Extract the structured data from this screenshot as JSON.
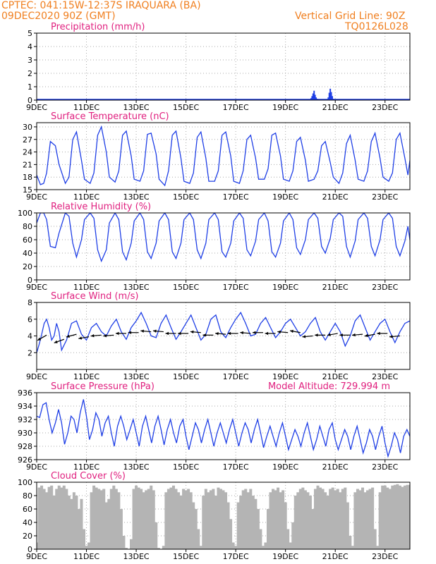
{
  "header": {
    "line1": "CPTEC:   041:15W-12:37S   IRAQUARA (BA)",
    "line2": "09DEC2020 90Z (GMT)",
    "grid_note": "Vertical Grid Line: 90Z",
    "code": "TQ0126L028"
  },
  "colors": {
    "header": "#f07f1f",
    "title": "#e0207f",
    "line": "#1f3fe6",
    "cloud": "#b4b4b4",
    "axis": "#000000"
  },
  "x_axis": {
    "domain_days": [
      9,
      24
    ],
    "ticks": [
      {
        "day": 9,
        "label": "9DEC"
      },
      {
        "day": 11,
        "label": "11DEC"
      },
      {
        "day": 13,
        "label": "13DEC"
      },
      {
        "day": 15,
        "label": "15DEC"
      },
      {
        "day": 17,
        "label": "17DEC"
      },
      {
        "day": 19,
        "label": "19DEC"
      },
      {
        "day": 21,
        "label": "21DEC"
      },
      {
        "day": 23,
        "label": "23DEC"
      }
    ]
  },
  "chart_data": [
    {
      "id": "precip",
      "type": "bar",
      "title": "Precipitation (mm/h)",
      "ylim": [
        0,
        5
      ],
      "yticks": [
        0,
        1,
        2,
        3,
        4,
        5
      ],
      "x": [
        20.03,
        20.07,
        20.11,
        20.15,
        20.19,
        20.23,
        20.27,
        20.31,
        20.72,
        20.76,
        20.8,
        20.84,
        20.88,
        20.92
      ],
      "values": [
        0.15,
        0.3,
        0.5,
        0.7,
        0.4,
        0.2,
        0.1,
        0.05,
        0.2,
        0.55,
        0.85,
        0.6,
        0.3,
        0.1
      ]
    },
    {
      "id": "temp",
      "type": "line",
      "title": "Surface Temperature (nC)",
      "ylim": [
        15,
        31
      ],
      "yticks": [
        15,
        18,
        21,
        24,
        27,
        30
      ],
      "x": [
        9.0,
        9.15,
        9.28,
        9.4,
        9.55,
        9.75,
        9.9,
        10.15,
        10.3,
        10.45,
        10.6,
        10.8,
        10.92,
        11.15,
        11.3,
        11.45,
        11.6,
        11.8,
        11.92,
        12.15,
        12.3,
        12.45,
        12.6,
        12.8,
        12.92,
        13.15,
        13.3,
        13.45,
        13.6,
        13.8,
        13.92,
        14.15,
        14.3,
        14.45,
        14.6,
        14.8,
        14.92,
        15.15,
        15.3,
        15.45,
        15.6,
        15.8,
        15.92,
        16.15,
        16.3,
        16.45,
        16.6,
        16.8,
        16.92,
        17.15,
        17.3,
        17.45,
        17.6,
        17.8,
        17.92,
        18.15,
        18.3,
        18.45,
        18.6,
        18.8,
        18.92,
        19.15,
        19.3,
        19.45,
        19.6,
        19.8,
        19.92,
        20.15,
        20.3,
        20.45,
        20.6,
        20.8,
        20.92,
        21.15,
        21.3,
        21.45,
        21.6,
        21.8,
        21.92,
        22.15,
        22.3,
        22.45,
        22.6,
        22.8,
        22.92,
        23.15,
        23.3,
        23.45,
        23.6,
        23.8,
        23.92,
        24.0
      ],
      "values": [
        18.5,
        16.2,
        16.5,
        19.0,
        26.5,
        25.5,
        21.0,
        16.5,
        18.0,
        27.0,
        28.8,
        22.0,
        17.5,
        16.5,
        19.0,
        28.0,
        30.0,
        24.0,
        18.0,
        16.8,
        19.5,
        28.0,
        29.0,
        23.0,
        17.5,
        17.0,
        19.5,
        28.2,
        28.5,
        23.5,
        17.5,
        16.0,
        19.5,
        28.0,
        29.0,
        22.5,
        17.0,
        16.5,
        19.0,
        27.5,
        28.8,
        22.5,
        17.0,
        17.0,
        19.5,
        28.0,
        28.8,
        23.0,
        17.0,
        16.5,
        19.5,
        27.0,
        28.0,
        22.5,
        17.5,
        17.5,
        20.0,
        28.0,
        28.5,
        23.0,
        17.5,
        17.0,
        19.5,
        26.5,
        27.5,
        22.0,
        17.0,
        17.5,
        19.5,
        25.5,
        26.5,
        21.5,
        18.0,
        16.5,
        19.0,
        26.0,
        28.0,
        22.0,
        17.5,
        17.0,
        19.5,
        26.5,
        28.5,
        22.5,
        18.0,
        17.0,
        19.0,
        27.0,
        28.5,
        22.5,
        18.5,
        22.0
      ]
    },
    {
      "id": "rh",
      "type": "line",
      "title": "Relative Humidity (%)",
      "ylim": [
        0,
        100
      ],
      "yticks": [
        0,
        20,
        40,
        60,
        80,
        100
      ],
      "x": [
        9.0,
        9.15,
        9.28,
        9.4,
        9.55,
        9.75,
        9.9,
        10.15,
        10.3,
        10.45,
        10.6,
        10.8,
        10.92,
        11.15,
        11.3,
        11.45,
        11.6,
        11.8,
        11.92,
        12.15,
        12.3,
        12.45,
        12.6,
        12.8,
        12.92,
        13.15,
        13.3,
        13.45,
        13.6,
        13.8,
        13.92,
        14.15,
        14.3,
        14.45,
        14.6,
        14.8,
        14.92,
        15.15,
        15.3,
        15.45,
        15.6,
        15.8,
        15.92,
        16.15,
        16.3,
        16.45,
        16.6,
        16.8,
        16.92,
        17.15,
        17.3,
        17.45,
        17.6,
        17.8,
        17.92,
        18.15,
        18.3,
        18.45,
        18.6,
        18.8,
        18.92,
        19.15,
        19.3,
        19.45,
        19.6,
        19.8,
        19.92,
        20.15,
        20.3,
        20.45,
        20.6,
        20.8,
        20.92,
        21.15,
        21.3,
        21.45,
        21.6,
        21.8,
        21.92,
        22.15,
        22.3,
        22.45,
        22.6,
        22.8,
        22.92,
        23.15,
        23.3,
        23.45,
        23.6,
        23.8,
        23.92,
        24.0
      ],
      "values": [
        85,
        100,
        100,
        90,
        50,
        48,
        70,
        100,
        95,
        55,
        34,
        60,
        90,
        100,
        92,
        45,
        28,
        45,
        85,
        100,
        90,
        42,
        30,
        55,
        88,
        100,
        90,
        42,
        32,
        55,
        88,
        100,
        90,
        42,
        32,
        55,
        90,
        100,
        90,
        45,
        32,
        55,
        90,
        100,
        90,
        42,
        34,
        55,
        88,
        100,
        92,
        45,
        36,
        58,
        90,
        100,
        88,
        42,
        34,
        55,
        88,
        100,
        90,
        48,
        38,
        60,
        90,
        100,
        92,
        50,
        40,
        62,
        90,
        100,
        95,
        50,
        34,
        58,
        90,
        100,
        92,
        50,
        36,
        60,
        90,
        100,
        92,
        50,
        36,
        58,
        80,
        60
      ]
    },
    {
      "id": "wind",
      "type": "line",
      "title": "Surface Wind (m/s)",
      "ylim": [
        0,
        8
      ],
      "yticks": [
        2,
        4,
        6,
        8
      ],
      "x": [
        9.0,
        9.1,
        9.2,
        9.3,
        9.4,
        9.5,
        9.6,
        9.7,
        9.8,
        9.9,
        10.0,
        10.2,
        10.4,
        10.6,
        10.8,
        11.0,
        11.2,
        11.4,
        11.6,
        11.8,
        12.0,
        12.2,
        12.4,
        12.6,
        12.8,
        13.0,
        13.2,
        13.4,
        13.6,
        13.8,
        14.0,
        14.2,
        14.4,
        14.6,
        14.8,
        15.0,
        15.2,
        15.4,
        15.6,
        15.8,
        16.0,
        16.2,
        16.4,
        16.6,
        16.8,
        17.0,
        17.2,
        17.4,
        17.6,
        17.8,
        18.0,
        18.2,
        18.4,
        18.6,
        18.8,
        19.0,
        19.2,
        19.4,
        19.6,
        19.8,
        20.0,
        20.2,
        20.4,
        20.6,
        20.8,
        21.0,
        21.2,
        21.4,
        21.6,
        21.8,
        22.0,
        22.2,
        22.4,
        22.6,
        22.8,
        23.0,
        23.2,
        23.4,
        23.6,
        23.8,
        24.0
      ],
      "values": [
        2.0,
        3.0,
        4.2,
        5.5,
        6.0,
        5.0,
        3.5,
        4.0,
        5.5,
        4.5,
        2.3,
        3.5,
        5.5,
        5.8,
        4.2,
        3.5,
        5.0,
        5.5,
        4.5,
        4.0,
        5.2,
        6.0,
        4.5,
        3.6,
        5.0,
        5.8,
        6.8,
        5.5,
        4.0,
        3.8,
        5.5,
        6.5,
        5.0,
        3.6,
        4.5,
        5.5,
        6.5,
        5.0,
        3.5,
        4.2,
        6.0,
        6.5,
        4.5,
        3.8,
        5.0,
        6.0,
        6.8,
        5.5,
        4.0,
        4.2,
        5.5,
        6.2,
        5.0,
        3.8,
        4.5,
        5.5,
        6.0,
        5.0,
        4.0,
        4.5,
        5.5,
        6.2,
        4.5,
        3.5,
        4.5,
        5.5,
        4.5,
        2.8,
        4.0,
        5.8,
        6.5,
        5.0,
        3.5,
        4.5,
        5.5,
        6.0,
        4.5,
        3.2,
        4.5,
        5.5,
        5.8
      ],
      "arrows": {
        "x": [
          9.4,
          10.1,
          10.6,
          11.1,
          11.6,
          12.1,
          12.6,
          13.1,
          13.6,
          14.1,
          14.6,
          15.1,
          15.6,
          16.1,
          16.6,
          17.1,
          17.6,
          18.1,
          18.6,
          19.1,
          19.6,
          20.1,
          20.6,
          21.1,
          21.6,
          22.1,
          22.6,
          23.1,
          23.6
        ],
        "y": [
          4.1,
          3.6,
          4.2,
          3.9,
          4.1,
          4.1,
          4.3,
          4.4,
          4.5,
          4.5,
          4.3,
          4.3,
          4.4,
          4.1,
          4.2,
          4.3,
          4.3,
          4.4,
          4.3,
          4.4,
          4.4,
          4.0,
          4.1,
          4.3,
          4.1,
          4.2,
          4.2,
          4.3,
          4.0
        ],
        "dir_deg": [
          210,
          200,
          195,
          190,
          185,
          185,
          180,
          180,
          175,
          175,
          180,
          180,
          175,
          180,
          175,
          180,
          175,
          180,
          180,
          175,
          170,
          185,
          180,
          190,
          180,
          185,
          190,
          180,
          185
        ]
      }
    },
    {
      "id": "pressure",
      "type": "line",
      "title": "Surface Pressure (hPa)",
      "subtitle": "Model Altitude: 729.994 m",
      "ylim": [
        926,
        936
      ],
      "yticks": [
        926,
        928,
        930,
        932,
        934,
        936
      ],
      "x": [
        9.0,
        9.12,
        9.25,
        9.38,
        9.5,
        9.62,
        9.75,
        9.88,
        10.0,
        10.12,
        10.25,
        10.38,
        10.5,
        10.62,
        10.75,
        10.88,
        11.0,
        11.12,
        11.25,
        11.38,
        11.5,
        11.62,
        11.75,
        11.88,
        12.0,
        12.12,
        12.25,
        12.38,
        12.5,
        12.62,
        12.75,
        12.88,
        13.0,
        13.12,
        13.25,
        13.38,
        13.5,
        13.62,
        13.75,
        13.88,
        14.0,
        14.12,
        14.25,
        14.38,
        14.5,
        14.62,
        14.75,
        14.88,
        15.0,
        15.12,
        15.25,
        15.38,
        15.5,
        15.62,
        15.75,
        15.88,
        16.0,
        16.12,
        16.25,
        16.38,
        16.5,
        16.62,
        16.75,
        16.88,
        17.0,
        17.12,
        17.25,
        17.38,
        17.5,
        17.62,
        17.75,
        17.88,
        18.0,
        18.12,
        18.25,
        18.38,
        18.5,
        18.62,
        18.75,
        18.88,
        19.0,
        19.12,
        19.25,
        19.38,
        19.5,
        19.62,
        19.75,
        19.88,
        20.0,
        20.12,
        20.25,
        20.38,
        20.5,
        20.62,
        20.75,
        20.88,
        21.0,
        21.12,
        21.25,
        21.38,
        21.5,
        21.62,
        21.75,
        21.88,
        22.0,
        22.12,
        22.25,
        22.38,
        22.5,
        22.62,
        22.75,
        22.88,
        23.0,
        23.12,
        23.25,
        23.38,
        23.5,
        23.62,
        23.75,
        23.88,
        24.0
      ],
      "values": [
        932.5,
        932.3,
        934.2,
        934.5,
        932.0,
        930.0,
        931.5,
        933.5,
        931.5,
        928.3,
        930.0,
        932.5,
        932.0,
        930.0,
        933.0,
        935.0,
        932.5,
        929.0,
        930.5,
        933.0,
        932.0,
        929.5,
        931.5,
        932.5,
        930.0,
        928.0,
        931.0,
        932.5,
        931.0,
        929.0,
        930.5,
        932.0,
        930.0,
        928.0,
        931.0,
        932.5,
        930.5,
        928.5,
        931.0,
        932.5,
        930.5,
        928.2,
        930.5,
        932.0,
        930.0,
        928.5,
        931.0,
        932.0,
        929.5,
        927.5,
        929.5,
        931.5,
        930.5,
        928.5,
        930.5,
        932.0,
        930.0,
        928.0,
        930.0,
        931.5,
        930.0,
        928.5,
        930.5,
        932.0,
        930.0,
        928.0,
        930.0,
        931.5,
        930.5,
        928.5,
        930.5,
        932.0,
        930.0,
        927.8,
        929.5,
        931.0,
        929.5,
        928.0,
        930.0,
        931.5,
        929.5,
        927.5,
        929.0,
        930.5,
        929.5,
        928.0,
        930.0,
        931.5,
        929.5,
        927.5,
        929.0,
        931.0,
        929.5,
        928.0,
        930.5,
        931.5,
        929.0,
        927.5,
        929.0,
        930.5,
        929.5,
        927.5,
        929.5,
        931.0,
        929.0,
        927.0,
        928.5,
        930.5,
        929.5,
        927.5,
        929.5,
        931.0,
        928.5,
        926.5,
        928.0,
        930.0,
        929.0,
        927.0,
        929.5,
        930.5,
        929.5
      ]
    },
    {
      "id": "cloud",
      "type": "area",
      "title": "Cloud Cover (%)",
      "ylim": [
        0,
        100
      ],
      "yticks": [
        0,
        20,
        40,
        60,
        80,
        100
      ],
      "x": [
        9.0,
        9.1,
        9.2,
        9.3,
        9.4,
        9.5,
        9.6,
        9.7,
        9.8,
        9.9,
        10.0,
        10.1,
        10.2,
        10.3,
        10.4,
        10.5,
        10.6,
        10.7,
        10.8,
        10.9,
        11.0,
        11.1,
        11.2,
        11.3,
        11.4,
        11.5,
        11.6,
        11.7,
        11.8,
        11.9,
        12.0,
        12.1,
        12.2,
        12.3,
        12.4,
        12.5,
        12.6,
        12.7,
        12.8,
        12.9,
        13.0,
        13.1,
        13.2,
        13.3,
        13.4,
        13.5,
        13.6,
        13.7,
        13.8,
        13.9,
        14.0,
        14.1,
        14.2,
        14.3,
        14.4,
        14.5,
        14.6,
        14.7,
        14.8,
        14.9,
        15.0,
        15.1,
        15.2,
        15.3,
        15.4,
        15.5,
        15.6,
        15.7,
        15.8,
        15.9,
        16.0,
        16.1,
        16.2,
        16.3,
        16.4,
        16.5,
        16.6,
        16.7,
        16.8,
        16.9,
        17.0,
        17.1,
        17.2,
        17.3,
        17.4,
        17.5,
        17.6,
        17.7,
        17.8,
        17.9,
        18.0,
        18.1,
        18.2,
        18.3,
        18.4,
        18.5,
        18.6,
        18.7,
        18.8,
        18.9,
        19.0,
        19.1,
        19.2,
        19.3,
        19.4,
        19.5,
        19.6,
        19.7,
        19.8,
        19.9,
        20.0,
        20.1,
        20.2,
        20.3,
        20.4,
        20.5,
        20.6,
        20.7,
        20.8,
        20.9,
        21.0,
        21.1,
        21.2,
        21.3,
        21.4,
        21.5,
        21.6,
        21.7,
        21.8,
        21.9,
        22.0,
        22.1,
        22.2,
        22.3,
        22.4,
        22.5,
        22.6,
        22.7,
        22.8,
        22.9,
        23.0,
        23.1,
        23.2,
        23.3,
        23.4,
        23.5,
        23.6,
        23.7,
        23.8,
        23.9,
        24.0
      ],
      "values": [
        10,
        92,
        95,
        90,
        85,
        93,
        95,
        80,
        90,
        95,
        92,
        95,
        90,
        80,
        75,
        85,
        80,
        60,
        75,
        30,
        5,
        10,
        85,
        95,
        92,
        90,
        88,
        90,
        70,
        75,
        90,
        95,
        90,
        85,
        60,
        20,
        2,
        0,
        15,
        90,
        95,
        92,
        90,
        85,
        88,
        90,
        95,
        88,
        40,
        2,
        0,
        5,
        85,
        90,
        92,
        95,
        90,
        85,
        80,
        90,
        88,
        90,
        85,
        70,
        60,
        30,
        5,
        80,
        90,
        85,
        88,
        90,
        80,
        92,
        90,
        88,
        85,
        70,
        45,
        10,
        5,
        70,
        80,
        88,
        90,
        85,
        90,
        80,
        75,
        60,
        30,
        5,
        10,
        60,
        85,
        90,
        88,
        92,
        85,
        88,
        70,
        30,
        10,
        40,
        80,
        85,
        90,
        92,
        88,
        85,
        80,
        60,
        90,
        95,
        92,
        90,
        85,
        80,
        90,
        92,
        88,
        90,
        85,
        90,
        92,
        70,
        20,
        5,
        85,
        90,
        88,
        92,
        85,
        88,
        90,
        92,
        30,
        5,
        85,
        95,
        95,
        92,
        90,
        95,
        96,
        97,
        95,
        93,
        95,
        96,
        96
      ]
    }
  ]
}
